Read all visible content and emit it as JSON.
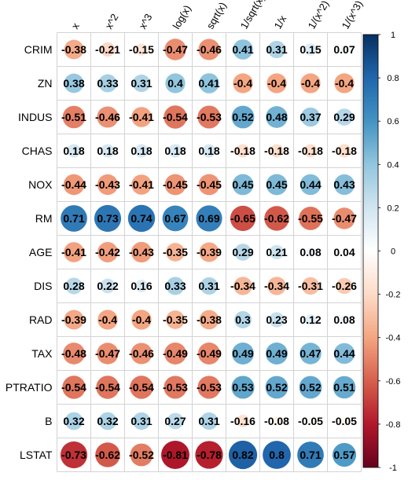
{
  "chart_data": {
    "type": "heatmap",
    "title": "",
    "columns": [
      "x",
      "x^2",
      "x^3",
      "log(x)",
      "sqrt(x)",
      "1/sqrt(x)",
      "1/x",
      "1/(x^2)",
      "1/(x^3)"
    ],
    "rows": [
      "CRIM",
      "ZN",
      "INDUS",
      "CHAS",
      "NOX",
      "RM",
      "AGE",
      "DIS",
      "RAD",
      "TAX",
      "PTRATIO",
      "B",
      "LSTAT"
    ],
    "values": [
      [
        -0.38,
        -0.21,
        -0.15,
        -0.47,
        -0.46,
        0.41,
        0.31,
        0.15,
        0.07
      ],
      [
        0.38,
        0.33,
        0.31,
        0.4,
        0.41,
        -0.4,
        -0.4,
        -0.4,
        -0.4
      ],
      [
        -0.51,
        -0.46,
        -0.41,
        -0.54,
        -0.53,
        0.52,
        0.48,
        0.37,
        0.29
      ],
      [
        0.18,
        0.18,
        0.18,
        0.18,
        0.18,
        -0.18,
        -0.18,
        -0.18,
        -0.18
      ],
      [
        -0.44,
        -0.43,
        -0.41,
        -0.45,
        -0.45,
        0.45,
        0.45,
        0.44,
        0.43
      ],
      [
        0.71,
        0.73,
        0.74,
        0.67,
        0.69,
        -0.65,
        -0.62,
        -0.55,
        -0.47
      ],
      [
        -0.41,
        -0.42,
        -0.43,
        -0.35,
        -0.39,
        0.29,
        0.21,
        0.08,
        0.04
      ],
      [
        0.28,
        0.22,
        0.16,
        0.33,
        0.31,
        -0.34,
        -0.34,
        -0.31,
        -0.26
      ],
      [
        -0.39,
        -0.4,
        -0.4,
        -0.35,
        -0.38,
        0.3,
        0.23,
        0.12,
        0.08
      ],
      [
        -0.48,
        -0.47,
        -0.46,
        -0.49,
        -0.49,
        0.49,
        0.49,
        0.47,
        0.44
      ],
      [
        -0.54,
        -0.54,
        -0.54,
        -0.53,
        -0.53,
        0.53,
        0.52,
        0.52,
        0.51
      ],
      [
        0.32,
        0.32,
        0.31,
        0.27,
        0.31,
        -0.16,
        -0.08,
        -0.05,
        -0.05
      ],
      [
        -0.73,
        -0.62,
        -0.52,
        -0.81,
        -0.78,
        0.82,
        0.8,
        0.71,
        0.57
      ]
    ],
    "value_range": [
      -1,
      1
    ],
    "colorbar_ticks": [
      1,
      0.8,
      0.6,
      0.4,
      0.2,
      0,
      -0.2,
      -0.4,
      -0.6,
      -0.8,
      -1
    ],
    "colorbar_labels": [
      "1",
      "0.8",
      "0.6",
      "0.4",
      "0.2",
      "0",
      "-0.2",
      "-0.4",
      "-0.6",
      "-0.8",
      "-1"
    ],
    "colormap": [
      "#67001F",
      "#B2182B",
      "#D6604D",
      "#F4A582",
      "#FDDBC7",
      "#FFFFFF",
      "#D1E5F0",
      "#92C5DE",
      "#4393C3",
      "#2166AC",
      "#053061"
    ],
    "grid": true,
    "grid_color": "#d3d3d3",
    "legend": "right"
  }
}
